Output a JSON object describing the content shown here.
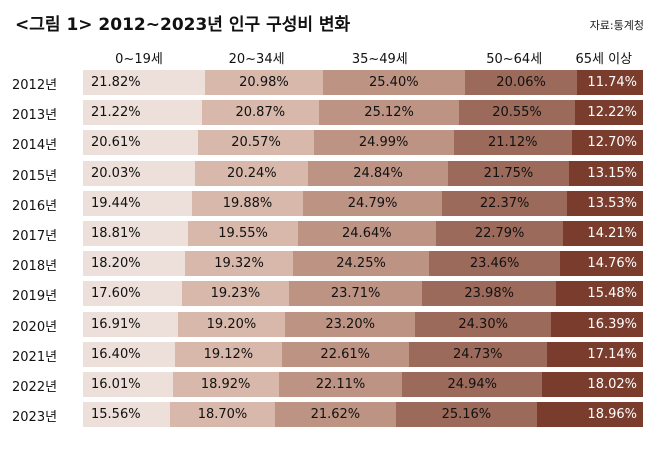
{
  "title": "<그림 1> 2012~2023년 인구 구성비 변화",
  "source": "자료:통계청",
  "chart_data": {
    "type": "bar",
    "orientation": "horizontal",
    "stacked": true,
    "normalized": true,
    "categories": [
      "2012년",
      "2013년",
      "2014년",
      "2015년",
      "2016년",
      "2017년",
      "2018년",
      "2019년",
      "2020년",
      "2021년",
      "2022년",
      "2023년"
    ],
    "series": [
      {
        "name": "0~19세",
        "color": "#eddfd9",
        "values": [
          21.82,
          21.22,
          20.61,
          20.03,
          19.44,
          18.81,
          18.2,
          17.6,
          16.91,
          16.4,
          16.01,
          15.56
        ],
        "labels": [
          "21.82%",
          "21.22%",
          "20.61%",
          "20.03%",
          "19.44%",
          "18.81%",
          "18.20%",
          "17.60%",
          "16.91%",
          "16.40%",
          "16.01%",
          "15.56%"
        ]
      },
      {
        "name": "20~34세",
        "color": "#d7b8ab",
        "values": [
          20.98,
          20.87,
          20.57,
          20.24,
          19.88,
          19.55,
          19.32,
          19.23,
          19.2,
          19.12,
          18.92,
          18.7
        ],
        "labels": [
          "20.98%",
          "20.87%",
          "20.57%",
          "20.24%",
          "19.88%",
          "19.55%",
          "19.32%",
          "19.23%",
          "19.20%",
          "19.12%",
          "18.92%",
          "18.70%"
        ]
      },
      {
        "name": "35~49세",
        "color": "#bd9384",
        "values": [
          25.4,
          25.12,
          24.99,
          24.84,
          24.79,
          24.64,
          24.25,
          23.71,
          23.2,
          22.61,
          22.11,
          21.62
        ],
        "labels": [
          "25.40%",
          "25.12%",
          "24.99%",
          "24.84%",
          "24.79%",
          "24.64%",
          "24.25%",
          "23.71%",
          "23.20%",
          "22.61%",
          "22.11%",
          "21.62%"
        ]
      },
      {
        "name": "50~64세",
        "color": "#9c6a5b",
        "values": [
          20.06,
          20.55,
          21.12,
          21.75,
          22.37,
          22.79,
          23.46,
          23.98,
          24.3,
          24.73,
          24.94,
          25.16
        ],
        "labels": [
          "20.06%",
          "20.55%",
          "21.12%",
          "21.75%",
          "22.37%",
          "22.79%",
          "23.46%",
          "23.98%",
          "24.30%",
          "24.73%",
          "24.94%",
          "25.16%"
        ]
      },
      {
        "name": "65세 이상",
        "color": "#7a3c2d",
        "values": [
          11.74,
          12.22,
          12.7,
          13.15,
          13.53,
          14.21,
          14.76,
          15.48,
          16.39,
          17.14,
          18.02,
          18.96
        ],
        "labels": [
          "11.74%",
          "12.22%",
          "12.70%",
          "13.15%",
          "13.53%",
          "14.21%",
          "14.76%",
          "15.48%",
          "16.39%",
          "17.14%",
          "18.02%",
          "18.96%"
        ]
      }
    ]
  }
}
